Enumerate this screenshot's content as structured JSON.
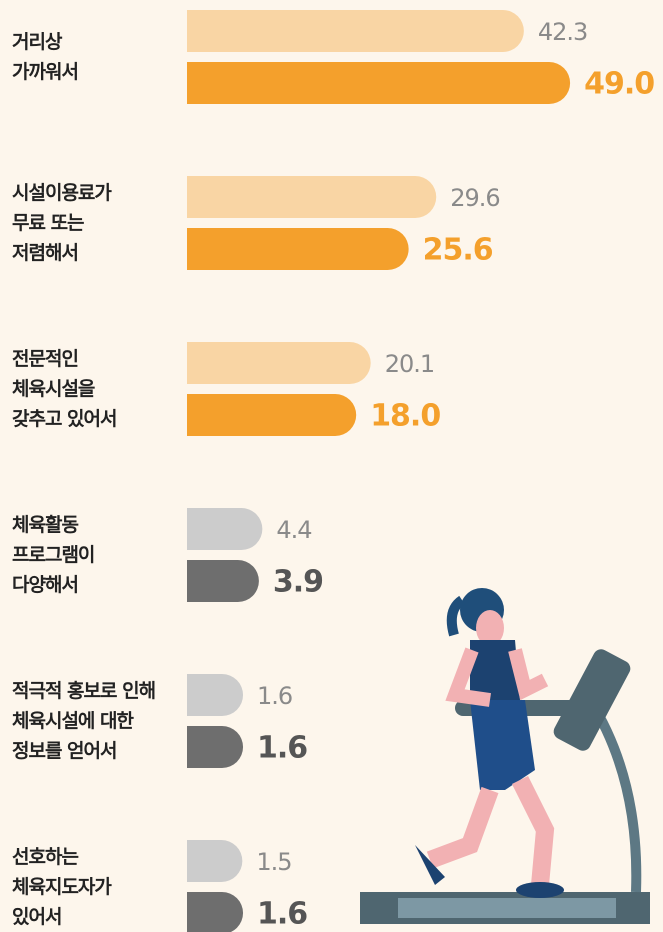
{
  "chart_data": {
    "type": "bar",
    "orientation": "horizontal",
    "categories": [
      "거리상\n가까워서",
      "시설이용료가\n무료 또는\n저렴해서",
      "전문적인\n체육시설을\n갖추고 있어서",
      "체육활동\n프로그램이\n다양해서",
      "적극적 홍보로 인해\n체육시설에 대한\n정보를 얻어서",
      "선호하는\n체육지도자가\n있어서"
    ],
    "series": [
      {
        "colors": [
          "#f9d5a4",
          "#f9d5a4",
          "#f9d5a4",
          "#cccccc",
          "#cccccc",
          "#cccccc"
        ],
        "label_colors": [
          "#8a8a8a",
          "#8a8a8a",
          "#8a8a8a",
          "#8a8a8a",
          "#8a8a8a",
          "#8a8a8a"
        ],
        "values": [
          42.3,
          29.6,
          20.1,
          4.4,
          1.6,
          1.5
        ]
      },
      {
        "colors": [
          "#f4a02c",
          "#f4a02c",
          "#f4a02c",
          "#6e6e6e",
          "#6e6e6e",
          "#6e6e6e"
        ],
        "label_colors": [
          "#f4a02c",
          "#f4a02c",
          "#f4a02c",
          "#555555",
          "#555555",
          "#555555"
        ],
        "values": [
          49,
          25.6,
          18,
          3.9,
          1.6,
          1.6
        ],
        "value_labels": [
          "49.0",
          "25.6",
          "18.0",
          "3.9",
          "1.6",
          "1.6"
        ]
      }
    ]
  }
}
